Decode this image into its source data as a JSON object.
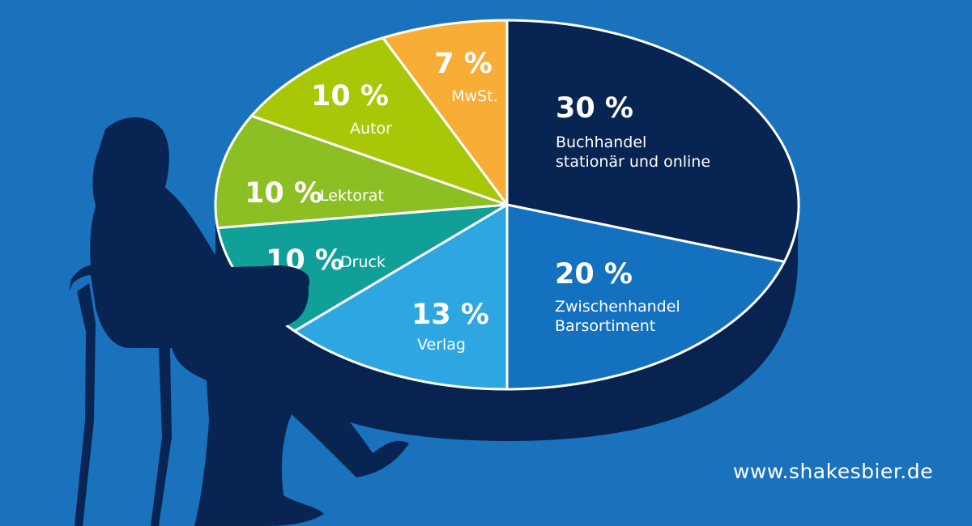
{
  "chart_data": {
    "type": "pie",
    "slices": [
      {
        "percent_label": "30 %",
        "value": 30,
        "label_lines": [
          "Buchhandel",
          "stationär und online"
        ],
        "color": "#082452"
      },
      {
        "percent_label": "20 %",
        "value": 20,
        "label_lines": [
          "Zwischenhandel",
          "Barsortiment"
        ],
        "color": "#1371c0"
      },
      {
        "percent_label": "13 %",
        "value": 13,
        "label_lines": [
          "Verlag"
        ],
        "color": "#2da6e1"
      },
      {
        "percent_label": "10 %",
        "value": 10,
        "label_lines": [
          "Druck"
        ],
        "color": "#10a098"
      },
      {
        "percent_label": "10 %",
        "value": 10,
        "label_lines": [
          "Lektorat"
        ],
        "color": "#8cbf24"
      },
      {
        "percent_label": "10 %",
        "value": 10,
        "label_lines": [
          "Autor"
        ],
        "color": "#a8c807"
      },
      {
        "percent_label": "7 %",
        "value": 7,
        "label_lines": [
          "MwSt."
        ],
        "color": "#f7ad36"
      }
    ]
  },
  "colors": {
    "background": "#1a72bd",
    "pie_side": "#08234f",
    "silhouette": "#082452"
  },
  "illustration": "seated-reader-silhouette",
  "website": "www.shakesbier.de"
}
